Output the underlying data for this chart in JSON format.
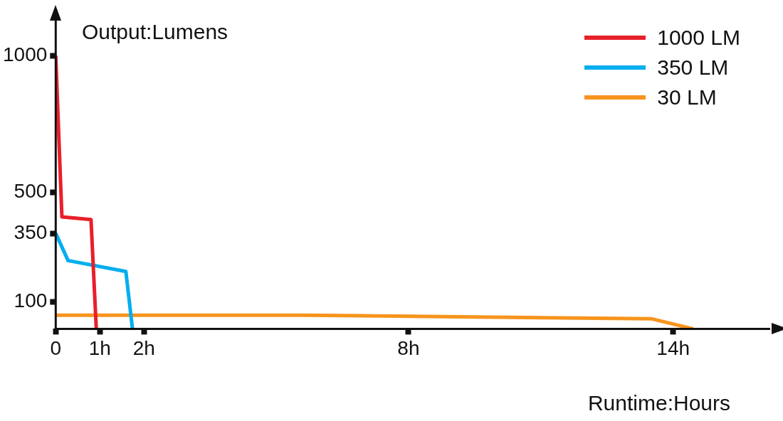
{
  "chart_data": {
    "type": "line",
    "xlabel": "Runtime:Hours",
    "ylabel": "Output:Lumens",
    "xlim": [
      0,
      16.2
    ],
    "xticks": [
      0,
      {
        "value": 1,
        "label": "1h"
      },
      {
        "value": 2,
        "label": "2h"
      },
      {
        "value": 8,
        "label": "8h"
      },
      {
        "value": 14,
        "label": "14h"
      }
    ],
    "ylim": [
      0,
      1150
    ],
    "yticks": [
      100,
      350,
      500,
      1000
    ],
    "grid": false,
    "legend": "top right",
    "marker": "none",
    "line_style": "solid",
    "series": [
      {
        "name": "1000 LM",
        "color": "#e8202a",
        "x": [
          0,
          0.14,
          0.8,
          0.92
        ],
        "values": [
          1000,
          410,
          400,
          0
        ]
      },
      {
        "name": "350 LM",
        "color": "#00aeef",
        "x": [
          0,
          0.28,
          1.59,
          1.74
        ],
        "values": [
          350,
          250,
          210,
          0
        ]
      },
      {
        "name": "30 LM",
        "color": "#f7941d",
        "x": [
          0,
          5.6,
          13.5,
          14.45
        ],
        "values": [
          50,
          50,
          37,
          0
        ]
      }
    ]
  }
}
